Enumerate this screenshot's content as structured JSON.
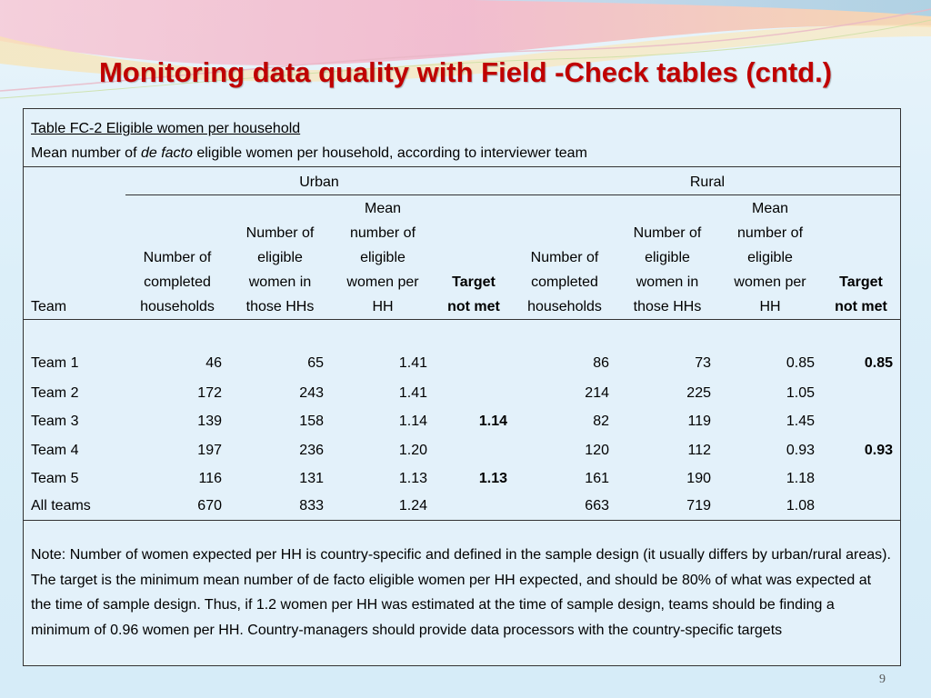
{
  "slide": {
    "title": "Monitoring data quality with Field -Check tables (cntd.)",
    "page_number": "9"
  },
  "table": {
    "caption": "Table FC-2 Eligible women per household",
    "subtitle_prefix": "Mean number of ",
    "subtitle_italic": "de facto",
    "subtitle_suffix": " eligible women per household, according to interviewer team",
    "group_urban": "Urban",
    "group_rural": "Rural",
    "col_team": "Team",
    "col_completed": [
      "Number of",
      "completed",
      "households"
    ],
    "col_eligible": [
      "Number of",
      "eligible",
      "women in",
      "those HHs"
    ],
    "col_mean": [
      "Mean",
      "number of",
      "eligible",
      "women per",
      "HH"
    ],
    "col_target": [
      "Target",
      "not met"
    ],
    "rows": [
      {
        "team": "Team 1",
        "u_hh": "46",
        "u_women": "65",
        "u_mean": "1.41",
        "u_target": "",
        "r_hh": "86",
        "r_women": "73",
        "r_mean": "0.85",
        "r_target": "0.85"
      },
      {
        "team": "Team 2",
        "u_hh": "172",
        "u_women": "243",
        "u_mean": "1.41",
        "u_target": "",
        "r_hh": "214",
        "r_women": "225",
        "r_mean": "1.05",
        "r_target": ""
      },
      {
        "team": "Team 3",
        "u_hh": "139",
        "u_women": "158",
        "u_mean": "1.14",
        "u_target": "1.14",
        "r_hh": "82",
        "r_women": "119",
        "r_mean": "1.45",
        "r_target": ""
      },
      {
        "team": "Team 4",
        "u_hh": "197",
        "u_women": "236",
        "u_mean": "1.20",
        "u_target": "",
        "r_hh": "120",
        "r_women": "112",
        "r_mean": "0.93",
        "r_target": "0.93"
      },
      {
        "team": "Team 5",
        "u_hh": "116",
        "u_women": "131",
        "u_mean": "1.13",
        "u_target": "1.13",
        "r_hh": "161",
        "r_women": "190",
        "r_mean": "1.18",
        "r_target": ""
      },
      {
        "team": "All teams",
        "u_hh": "670",
        "u_women": "833",
        "u_mean": "1.24",
        "u_target": "",
        "r_hh": "663",
        "r_women": "719",
        "r_mean": "1.08",
        "r_target": ""
      }
    ],
    "note": "Note: Number of women expected per HH is country-specific and defined in the sample design (it usually differs by urban/rural areas). The target is the minimum mean number of de facto eligible women per HH expected, and should be 80% of what was expected at the time of sample design. Thus, if 1.2 women per HH was estimated at the time of sample design, teams should be finding a minimum of 0.96 women per HH. Country-managers should provide data processors with the country-specific targets"
  },
  "colors": {
    "title": "#c00000",
    "background": "#e3f1fa"
  }
}
